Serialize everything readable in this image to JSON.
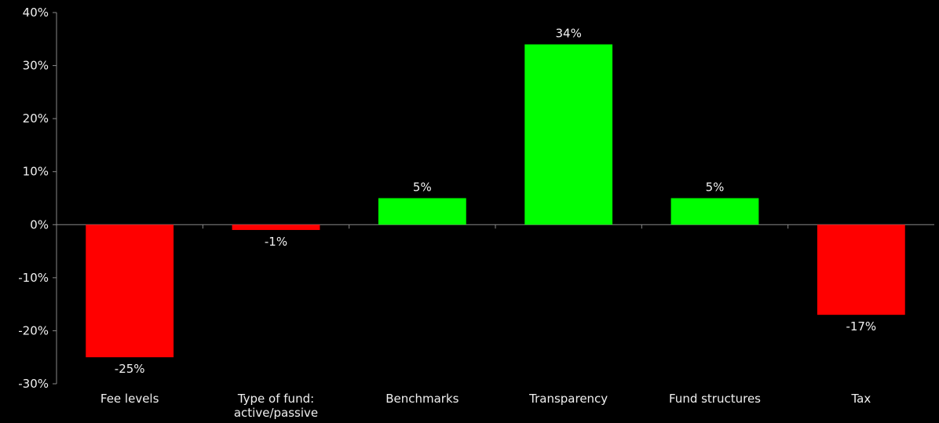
{
  "chart_data": {
    "type": "bar",
    "categories": [
      "Fee levels",
      "Type of fund: active/passive",
      "Benchmarks",
      "Transparency",
      "Fund structures",
      "Tax"
    ],
    "values": [
      -25,
      -1,
      5,
      34,
      5,
      -17
    ],
    "value_labels": [
      "-25%",
      "-1%",
      "5%",
      "34%",
      "5%",
      "-17%"
    ],
    "positive_color": "#00ff00",
    "negative_color": "#ff0000",
    "ylim": [
      -30,
      40
    ],
    "yticks": [
      {
        "value": -30,
        "label": "-30%"
      },
      {
        "value": -20,
        "label": "-20%"
      },
      {
        "value": -10,
        "label": "-10%"
      },
      {
        "value": 0,
        "label": "0%"
      },
      {
        "value": 10,
        "label": "10%"
      },
      {
        "value": 20,
        "label": "20%"
      },
      {
        "value": 30,
        "label": "30%"
      },
      {
        "value": 40,
        "label": "40%"
      }
    ],
    "grid": false
  }
}
